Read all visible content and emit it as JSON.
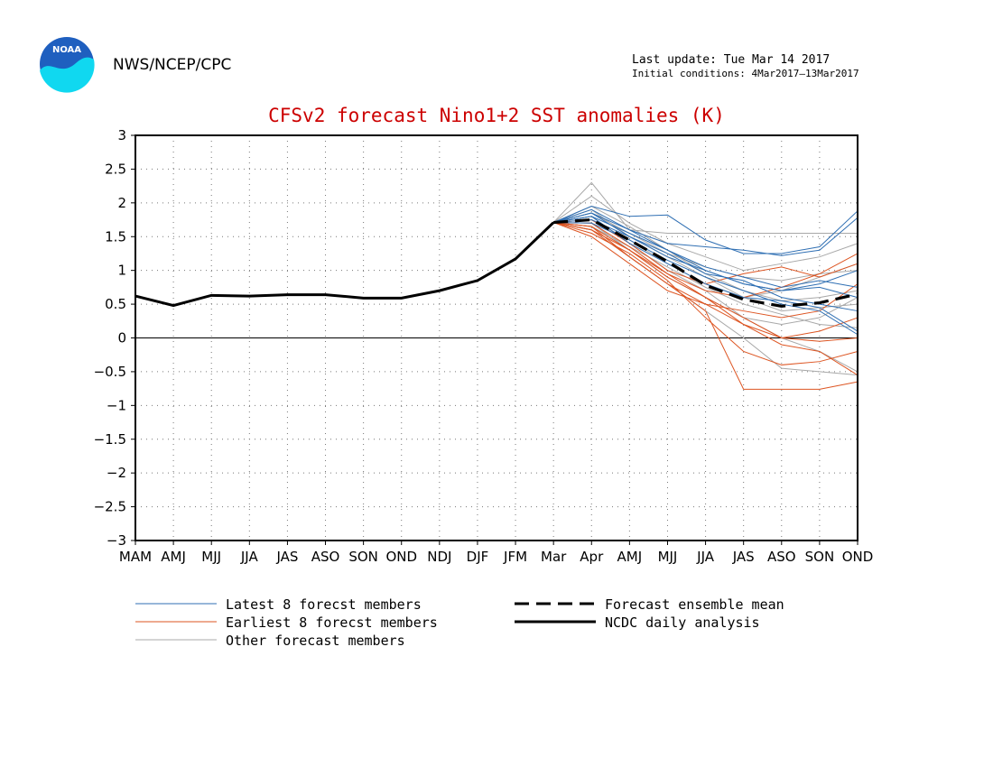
{
  "header": {
    "logo_text": "NOAA",
    "organization": "NWS/NCEP/CPC",
    "last_update": "Last update: Tue Mar 14 2017",
    "initial_conditions": "Initial conditions:  4Mar2017–13Mar2017"
  },
  "colors": {
    "title": "#cc0000",
    "latest": "#2f6fb3",
    "earliest": "#dd5522",
    "other": "#a8a8a8",
    "analysis": "#000000",
    "logo_blue": "#1f5fbf",
    "logo_cyan": "#10d8f0"
  },
  "chart_data": {
    "type": "line",
    "title": "CFSv2 forecast Nino1+2 SST anomalies (K)",
    "xlabel": "",
    "ylabel": "",
    "ylim": [
      -3,
      3
    ],
    "yticks": [
      3,
      2.5,
      2,
      1.5,
      1,
      0.5,
      0,
      -0.5,
      -1,
      -1.5,
      -2,
      -2.5,
      -3
    ],
    "ytick_labels": [
      "3",
      "2.5",
      "2",
      "1.5",
      "1",
      "0.5",
      "0",
      "−0.5",
      "−1",
      "−1.5",
      "−2",
      "−2.5",
      "−3"
    ],
    "categories": [
      "MAM",
      "AMJ",
      "MJJ",
      "JJA",
      "JAS",
      "ASO",
      "SON",
      "OND",
      "NDJ",
      "DJF",
      "JFM",
      "Mar",
      "Apr",
      "AMJ",
      "MJJ",
      "JJA",
      "JAS",
      "ASO",
      "SON",
      "OND"
    ],
    "grid": true,
    "zero_line": true,
    "legend": {
      "placement": "bottom",
      "entries": [
        {
          "label": "Latest 8 forecst members",
          "style": "latest"
        },
        {
          "label": "Earliest 8 forecst members",
          "style": "earliest"
        },
        {
          "label": "Other forecast members",
          "style": "other"
        },
        {
          "label": "Forecast ensemble mean",
          "style": "mean"
        },
        {
          "label": "NCDC daily analysis",
          "style": "analysis"
        }
      ]
    },
    "analysis": {
      "name": "NCDC daily analysis",
      "x_start": 0,
      "values": [
        0.62,
        0.48,
        0.63,
        0.62,
        0.64,
        0.64,
        0.59,
        0.59,
        0.7,
        0.85,
        1.17,
        1.71
      ]
    },
    "ensemble_mean": {
      "name": "Forecast ensemble mean",
      "x_start": 11,
      "values": [
        1.71,
        1.75,
        1.45,
        1.13,
        0.78,
        0.57,
        0.47,
        0.52,
        0.65
      ]
    },
    "members_latest": {
      "name": "Latest 8 forecst members",
      "x_start": 11,
      "series": [
        [
          1.71,
          1.95,
          1.8,
          1.82,
          1.45,
          1.25,
          1.25,
          1.35,
          1.88
        ],
        [
          1.71,
          1.9,
          1.6,
          1.4,
          1.35,
          1.3,
          1.22,
          1.3,
          1.78
        ],
        [
          1.71,
          1.85,
          1.5,
          1.2,
          1.0,
          0.8,
          0.7,
          0.8,
          1.0
        ],
        [
          1.71,
          1.8,
          1.55,
          1.3,
          1.05,
          0.9,
          0.75,
          0.85,
          0.75
        ],
        [
          1.71,
          1.75,
          1.5,
          1.25,
          0.95,
          0.85,
          0.6,
          0.5,
          0.4
        ],
        [
          1.71,
          1.8,
          1.4,
          1.1,
          0.8,
          0.6,
          0.55,
          0.45,
          0.1
        ],
        [
          1.71,
          1.7,
          1.45,
          1.15,
          0.9,
          0.7,
          0.5,
          0.4,
          0.05
        ],
        [
          1.71,
          1.85,
          1.6,
          1.3,
          1.0,
          0.8,
          0.7,
          0.75,
          0.6
        ]
      ]
    },
    "members_earliest": {
      "name": "Earliest 8 forecst members",
      "x_start": 11,
      "series": [
        [
          1.71,
          1.65,
          1.3,
          0.9,
          0.6,
          0.3,
          0.0,
          0.1,
          0.3
        ],
        [
          1.71,
          1.6,
          1.2,
          0.8,
          0.4,
          -0.76,
          -0.76,
          -0.76,
          -0.65
        ],
        [
          1.71,
          1.55,
          1.25,
          0.85,
          0.3,
          -0.2,
          -0.4,
          -0.35,
          -0.2
        ],
        [
          1.71,
          1.7,
          1.35,
          0.95,
          0.6,
          0.2,
          -0.1,
          -0.2,
          -0.55
        ],
        [
          1.71,
          1.75,
          1.4,
          1.0,
          0.8,
          0.95,
          1.05,
          0.9,
          1.1
        ],
        [
          1.71,
          1.6,
          1.3,
          0.95,
          0.7,
          0.6,
          0.75,
          0.95,
          1.25
        ],
        [
          1.71,
          1.5,
          1.1,
          0.7,
          0.5,
          0.4,
          0.3,
          0.4,
          0.8
        ],
        [
          1.71,
          1.65,
          1.2,
          0.8,
          0.5,
          0.2,
          0.0,
          -0.05,
          0.0
        ]
      ]
    },
    "members_other": {
      "name": "Other forecast members",
      "x_start": 11,
      "series": [
        [
          1.71,
          2.3,
          1.6,
          1.55,
          1.55,
          1.55,
          1.55,
          1.55,
          1.55
        ],
        [
          1.71,
          2.1,
          1.7,
          1.4,
          1.2,
          1.0,
          1.1,
          1.2,
          1.4
        ],
        [
          1.71,
          1.9,
          1.5,
          1.2,
          0.9,
          0.6,
          0.4,
          0.45,
          0.5
        ],
        [
          1.71,
          1.8,
          1.4,
          1.0,
          0.7,
          0.3,
          0.0,
          -0.2,
          -0.5
        ],
        [
          1.71,
          1.7,
          1.3,
          0.9,
          0.6,
          0.3,
          0.2,
          0.3,
          0.6
        ],
        [
          1.71,
          1.6,
          1.2,
          0.8,
          0.4,
          0.0,
          -0.45,
          -0.5,
          -0.55
        ],
        [
          1.71,
          1.75,
          1.45,
          1.1,
          0.8,
          0.6,
          0.7,
          0.9,
          1.1
        ],
        [
          1.71,
          1.85,
          1.55,
          1.25,
          1.05,
          0.9,
          0.85,
          0.95,
          1.0
        ],
        [
          1.71,
          1.65,
          1.35,
          1.05,
          0.75,
          0.5,
          0.35,
          0.2,
          0.15
        ],
        [
          1.71,
          1.95,
          1.65,
          1.3,
          0.95,
          0.7,
          0.55,
          0.6,
          0.7
        ]
      ]
    }
  }
}
